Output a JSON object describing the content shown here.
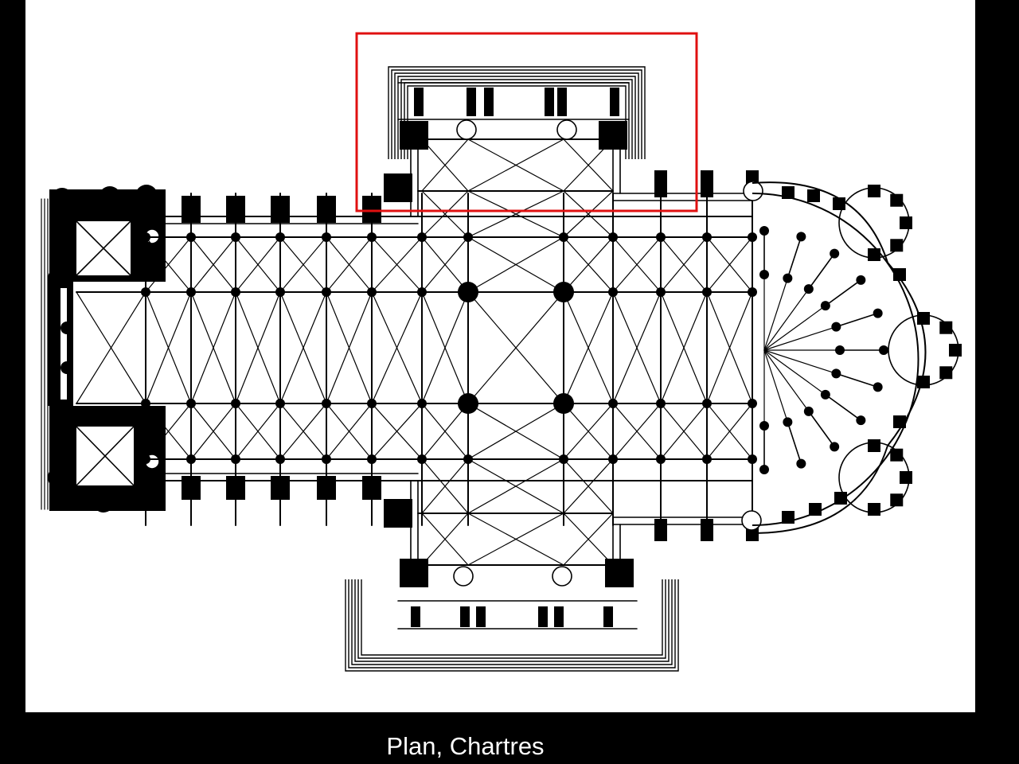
{
  "slide": {
    "caption": "Plan, Chartres",
    "background_color": "#000000",
    "panel_color": "#ffffff"
  },
  "diagram": {
    "subject": "cathedral-floor-plan",
    "ink_color": "#000000",
    "highlight": {
      "region": "north-transept",
      "color": "#e01010"
    }
  }
}
